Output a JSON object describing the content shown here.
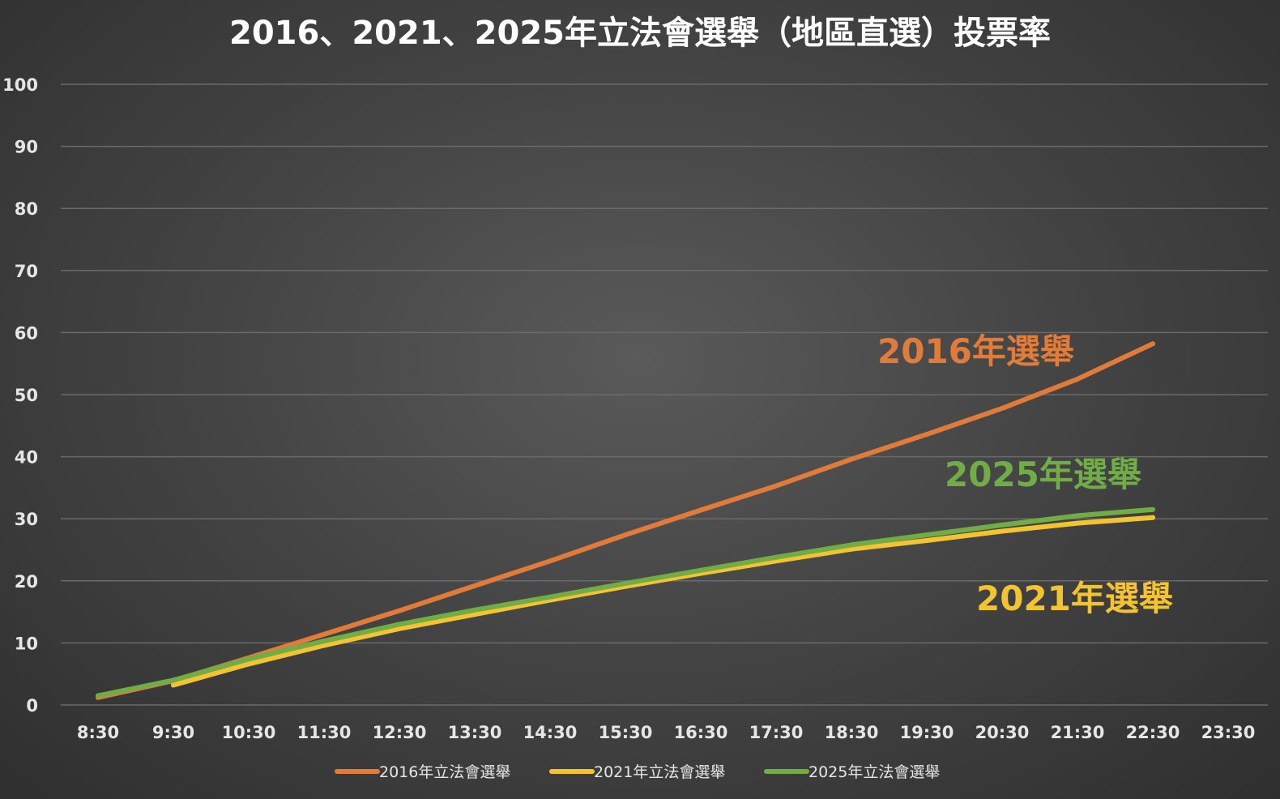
{
  "chart_data": {
    "type": "line",
    "title": "2016、2021、2025年立法會選舉（地區直選）投票率",
    "xlabel": "",
    "ylabel": "",
    "categories": [
      "8:30",
      "9:30",
      "10:30",
      "11:30",
      "12:30",
      "13:30",
      "14:30",
      "15:30",
      "16:30",
      "17:30",
      "18:30",
      "19:30",
      "20:30",
      "21:30",
      "22:30",
      "23:30"
    ],
    "yticks": [
      "0",
      "10",
      "20",
      "30",
      "40",
      "50",
      "60",
      "70",
      "80",
      "90",
      "100"
    ],
    "ylim": [
      0,
      100
    ],
    "grid": true,
    "legend_position": "bottom",
    "series": [
      {
        "name": "2016年立法會選舉",
        "color": "#e07b39",
        "values": [
          1.2,
          3.9,
          7.6,
          11.4,
          15.2,
          19.2,
          23.2,
          27.4,
          31.4,
          35.3,
          39.6,
          43.6,
          47.8,
          52.5,
          58.2,
          null
        ]
      },
      {
        "name": "2021年立法會選舉",
        "color": "#f4c430",
        "values": [
          null,
          3.2,
          6.6,
          9.6,
          12.3,
          14.6,
          16.9,
          19.1,
          21.2,
          23.2,
          25.1,
          26.5,
          28.0,
          29.3,
          30.2,
          null
        ]
      },
      {
        "name": "2025年立法會選舉",
        "color": "#70ad47",
        "values": [
          1.5,
          4.0,
          7.4,
          10.3,
          13.0,
          15.3,
          17.4,
          19.6,
          21.7,
          23.8,
          25.8,
          27.4,
          29.0,
          30.5,
          31.5,
          null
        ]
      }
    ],
    "annotations": [
      {
        "text": "2016年選舉",
        "color": "#e07b39"
      },
      {
        "text": "2025年選舉",
        "color": "#70ad47"
      },
      {
        "text": "2021年選舉",
        "color": "#f4c430"
      }
    ]
  }
}
